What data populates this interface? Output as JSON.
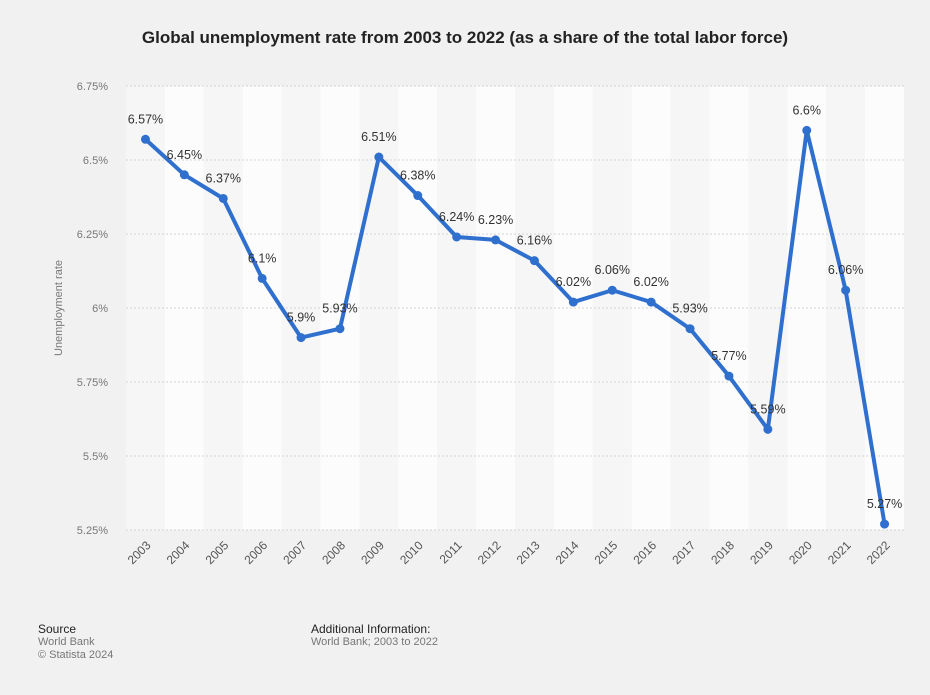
{
  "title": "Global unemployment rate from 2003 to 2022 (as a share of the total labor force)",
  "footer": {
    "source_head": "Source",
    "source_line1": "World Bank",
    "source_line2": "© Statista 2024",
    "additional_head": "Additional Information:",
    "additional_line1": "World Bank; 2003 to 2022"
  },
  "chart_data": {
    "type": "line",
    "title": "Global unemployment rate from 2003 to 2022 (as a share of the total labor force)",
    "xlabel": "",
    "ylabel": "Unemployment rate",
    "categories": [
      "2003",
      "2004",
      "2005",
      "2006",
      "2007",
      "2008",
      "2009",
      "2010",
      "2011",
      "2012",
      "2013",
      "2014",
      "2015",
      "2016",
      "2017",
      "2018",
      "2019",
      "2020",
      "2021",
      "2022"
    ],
    "series": [
      {
        "values": [
          6.57,
          6.45,
          6.37,
          6.1,
          5.9,
          5.93,
          6.51,
          6.38,
          6.24,
          6.23,
          6.16,
          6.02,
          6.06,
          6.02,
          5.93,
          5.77,
          5.59,
          6.6,
          6.06,
          5.27
        ],
        "labels": [
          "6.57%",
          "6.45%",
          "6.37%",
          "6.1%",
          "5.9%",
          "5.93%",
          "6.51%",
          "6.38%",
          "6.24%",
          "6.23%",
          "6.16%",
          "6.02%",
          "6.06%",
          "6.02%",
          "5.93%",
          "5.77%",
          "5.59%",
          "6.6%",
          "6.06%",
          "5.27%"
        ],
        "color": "#2f6fce"
      }
    ],
    "ylim": [
      5.25,
      6.75
    ],
    "yticks": [
      5.25,
      5.5,
      5.75,
      6,
      6.25,
      6.5,
      6.75
    ],
    "ytick_labels": [
      "5.25%",
      "5.5%",
      "5.75%",
      "6%",
      "6.25%",
      "6.5%",
      "6.75%"
    ],
    "grid": true,
    "legend": "none"
  }
}
